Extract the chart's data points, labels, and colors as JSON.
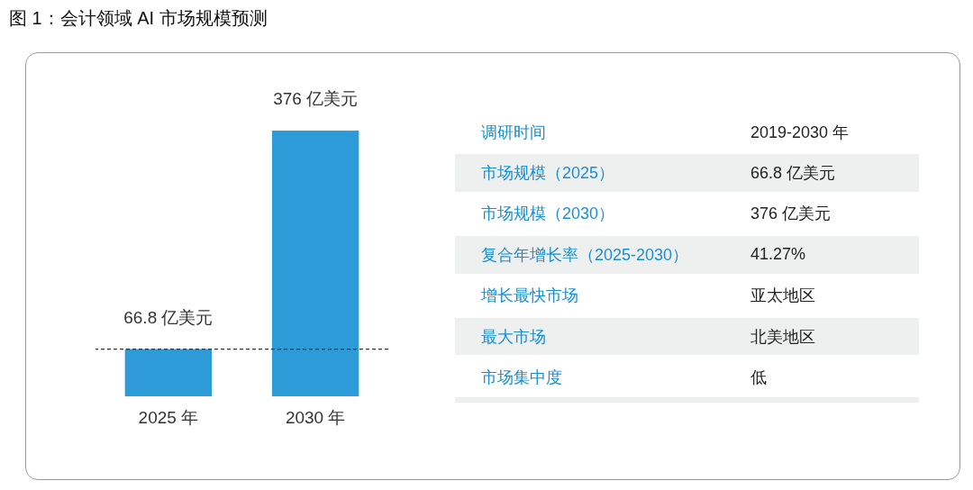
{
  "chart_data": [
    {
      "type": "bar",
      "title": "图 1：会计领域 AI 市场规模预测",
      "categories": [
        "2025 年",
        "2030 年"
      ],
      "values": [
        66.8,
        376
      ],
      "color": "#2e9bd9",
      "value_labels": [
        "66.8 亿美元",
        "376 亿美元"
      ],
      "ref_lines": [
        {
          "axis": "y",
          "value": 66.8,
          "color": "#333333",
          "line_style": "dashed"
        }
      ],
      "tick_labels": "x"
    },
    {
      "type": "other",
      "annotations": [
        "调研时间",
        "2019-2030 年",
        "市场规模（2025）",
        "66.8 亿美元",
        "市场规模（2030）",
        "376 亿美元",
        "复合年增长率（2025-2030）",
        "41.27%",
        "增长最快市场",
        "亚太地区",
        "最大市场",
        "北美地区",
        "市场集中度",
        "低"
      ]
    }
  ]
}
